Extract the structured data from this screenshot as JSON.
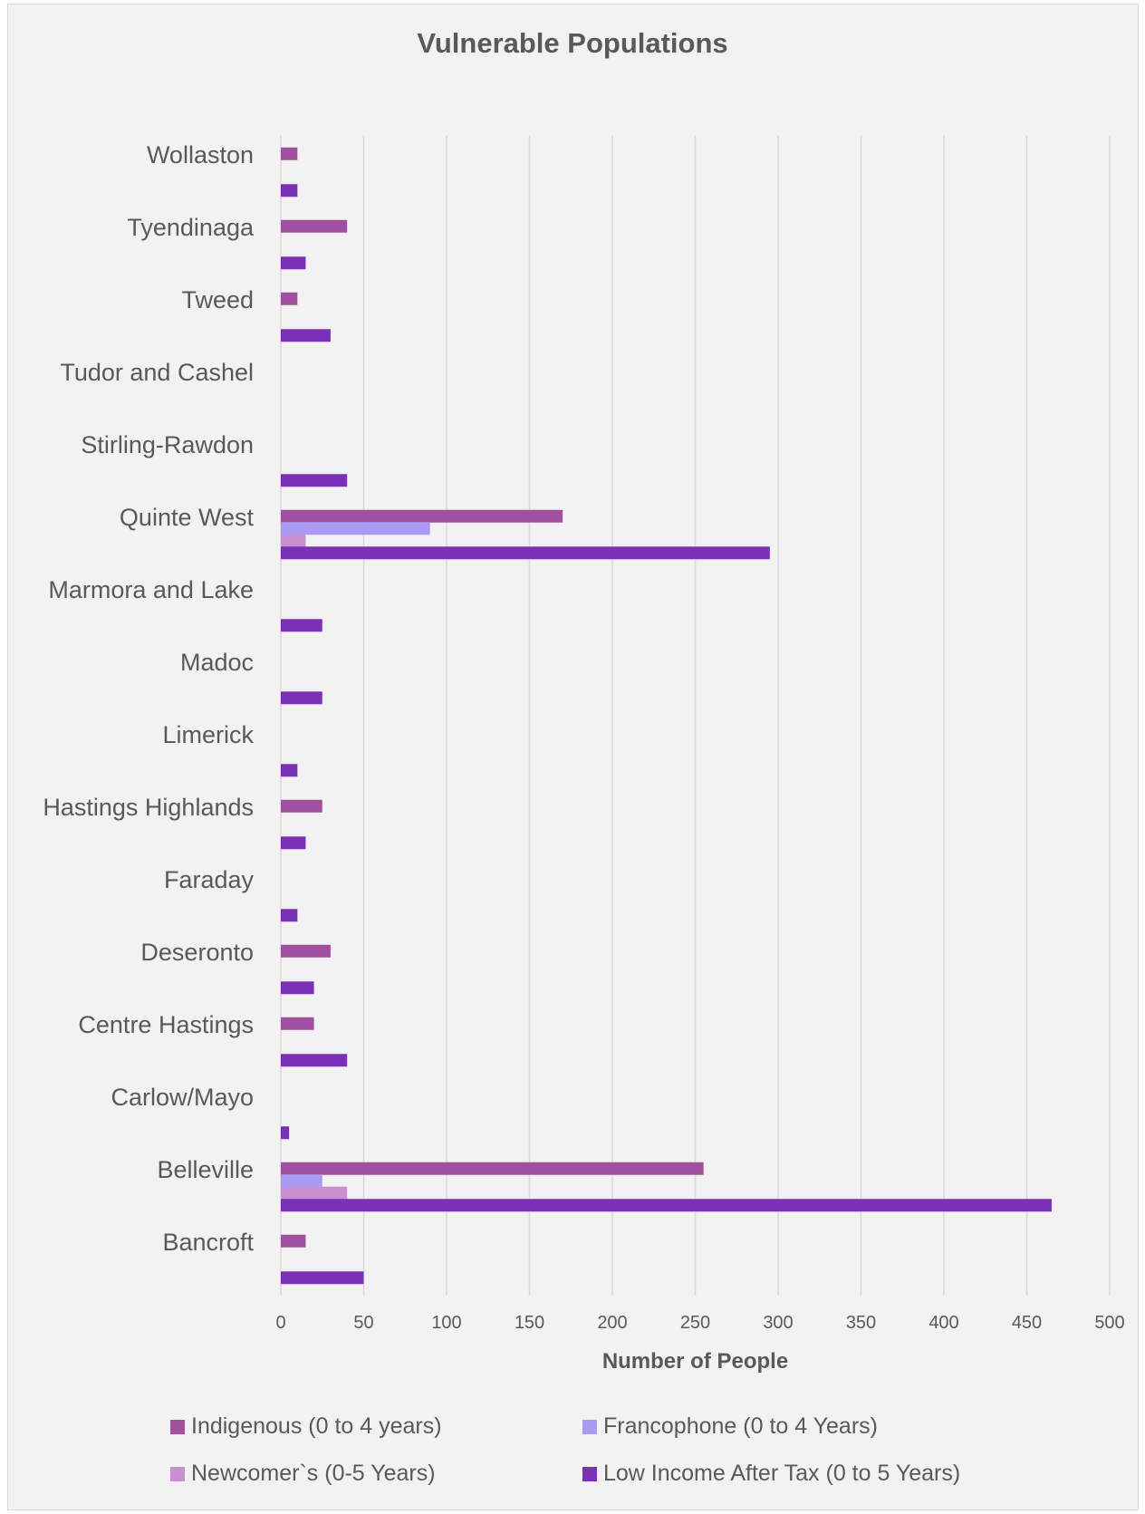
{
  "chart_data": {
    "type": "bar",
    "orientation": "horizontal",
    "title": "Vulnerable Populations",
    "xlabel": "Number of People",
    "ylabel": "",
    "xlim": [
      0,
      500
    ],
    "x_ticks": [
      0,
      50,
      100,
      150,
      200,
      250,
      300,
      350,
      400,
      450,
      500
    ],
    "grid": "vertical",
    "legend_position": "bottom",
    "categories": [
      "Wollaston",
      "Tyendinaga",
      "Tweed",
      "Tudor and Cashel",
      "Stirling-Rawdon",
      "Quinte West",
      "Marmora and Lake",
      "Madoc",
      "Limerick",
      "Hastings Highlands",
      "Faraday",
      "Deseronto",
      "Centre Hastings",
      "Carlow/Mayo",
      "Belleville",
      "Bancroft"
    ],
    "series": [
      {
        "name": "Indigenous (0 to 4 years)",
        "color": "#a0509f",
        "values": [
          10,
          40,
          10,
          0,
          0,
          170,
          0,
          0,
          0,
          25,
          0,
          30,
          20,
          0,
          255,
          15
        ]
      },
      {
        "name": "Francophone (0 to 4 Years)",
        "color": "#a99af5",
        "values": [
          0,
          0,
          0,
          0,
          0,
          90,
          0,
          0,
          0,
          0,
          0,
          0,
          0,
          0,
          25,
          0
        ]
      },
      {
        "name": "Newcomer`s (0-5 Years)",
        "color": "#c890d0",
        "values": [
          0,
          0,
          0,
          0,
          0,
          15,
          0,
          0,
          0,
          0,
          0,
          0,
          0,
          0,
          40,
          0
        ]
      },
      {
        "name": "Low Income After Tax (0 to 5 Years)",
        "color": "#7b30b8",
        "values": [
          10,
          15,
          30,
          0,
          40,
          295,
          25,
          25,
          10,
          15,
          10,
          20,
          40,
          5,
          465,
          50
        ]
      }
    ]
  }
}
